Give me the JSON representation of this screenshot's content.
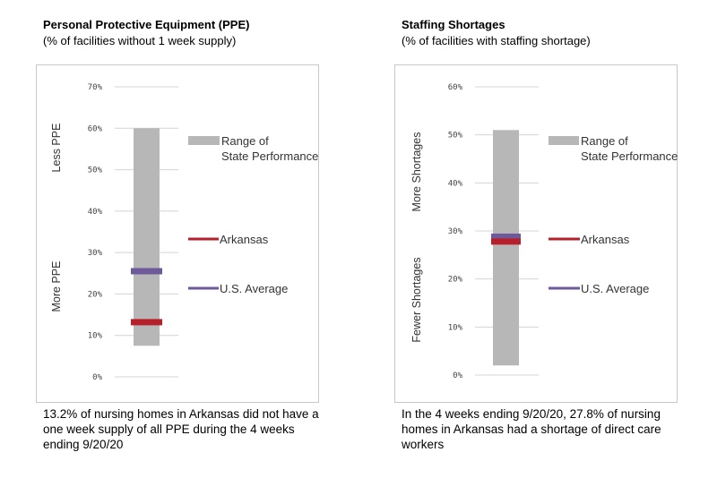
{
  "chart_data": [
    {
      "type": "range-bar",
      "title": "Personal Protective Equipment (PPE)",
      "subtitle": "(% of facilities without 1 week supply)",
      "ylim": [
        0,
        70
      ],
      "yticks": [
        0,
        10,
        20,
        30,
        40,
        50,
        60,
        70
      ],
      "tick_labels": [
        "0%",
        "10%",
        "20%",
        "30%",
        "40%",
        "50%",
        "60%",
        "70%"
      ],
      "range": {
        "min": 7.5,
        "max": 60,
        "label": "Range of State Performance",
        "color": "#b7b7b7"
      },
      "markers": [
        {
          "name": "Arkansas",
          "value": 13.2,
          "color": "#b5202a"
        },
        {
          "name": "U.S. Average",
          "value": 25.5,
          "color": "#6e5a9b"
        }
      ],
      "side_labels": {
        "top": "Less PPE",
        "bottom": "More PPE"
      },
      "caption": "13.2% of nursing homes in Arkansas did not have a one week supply of all PPE during the 4 weeks ending 9/20/20"
    },
    {
      "type": "range-bar",
      "title": "Staffing Shortages",
      "subtitle": "(% of facilities with staffing shortage)",
      "ylim": [
        0,
        60
      ],
      "yticks": [
        0,
        10,
        20,
        30,
        40,
        50,
        60
      ],
      "tick_labels": [
        "0%",
        "10%",
        "20%",
        "30%",
        "40%",
        "50%",
        "60%"
      ],
      "range": {
        "min": 2,
        "max": 51,
        "label": "Range of State Performance",
        "color": "#b7b7b7"
      },
      "markers": [
        {
          "name": "Arkansas",
          "value": 27.8,
          "color": "#b5202a"
        },
        {
          "name": "U.S. Average",
          "value": 28.8,
          "color": "#6e5a9b"
        }
      ],
      "side_labels": {
        "top": "More Shortages",
        "bottom": "Fewer Shortages"
      },
      "caption": "In the 4 weeks ending 9/20/20, 27.8% of nursing homes in Arkansas had a shortage of direct care workers"
    }
  ]
}
